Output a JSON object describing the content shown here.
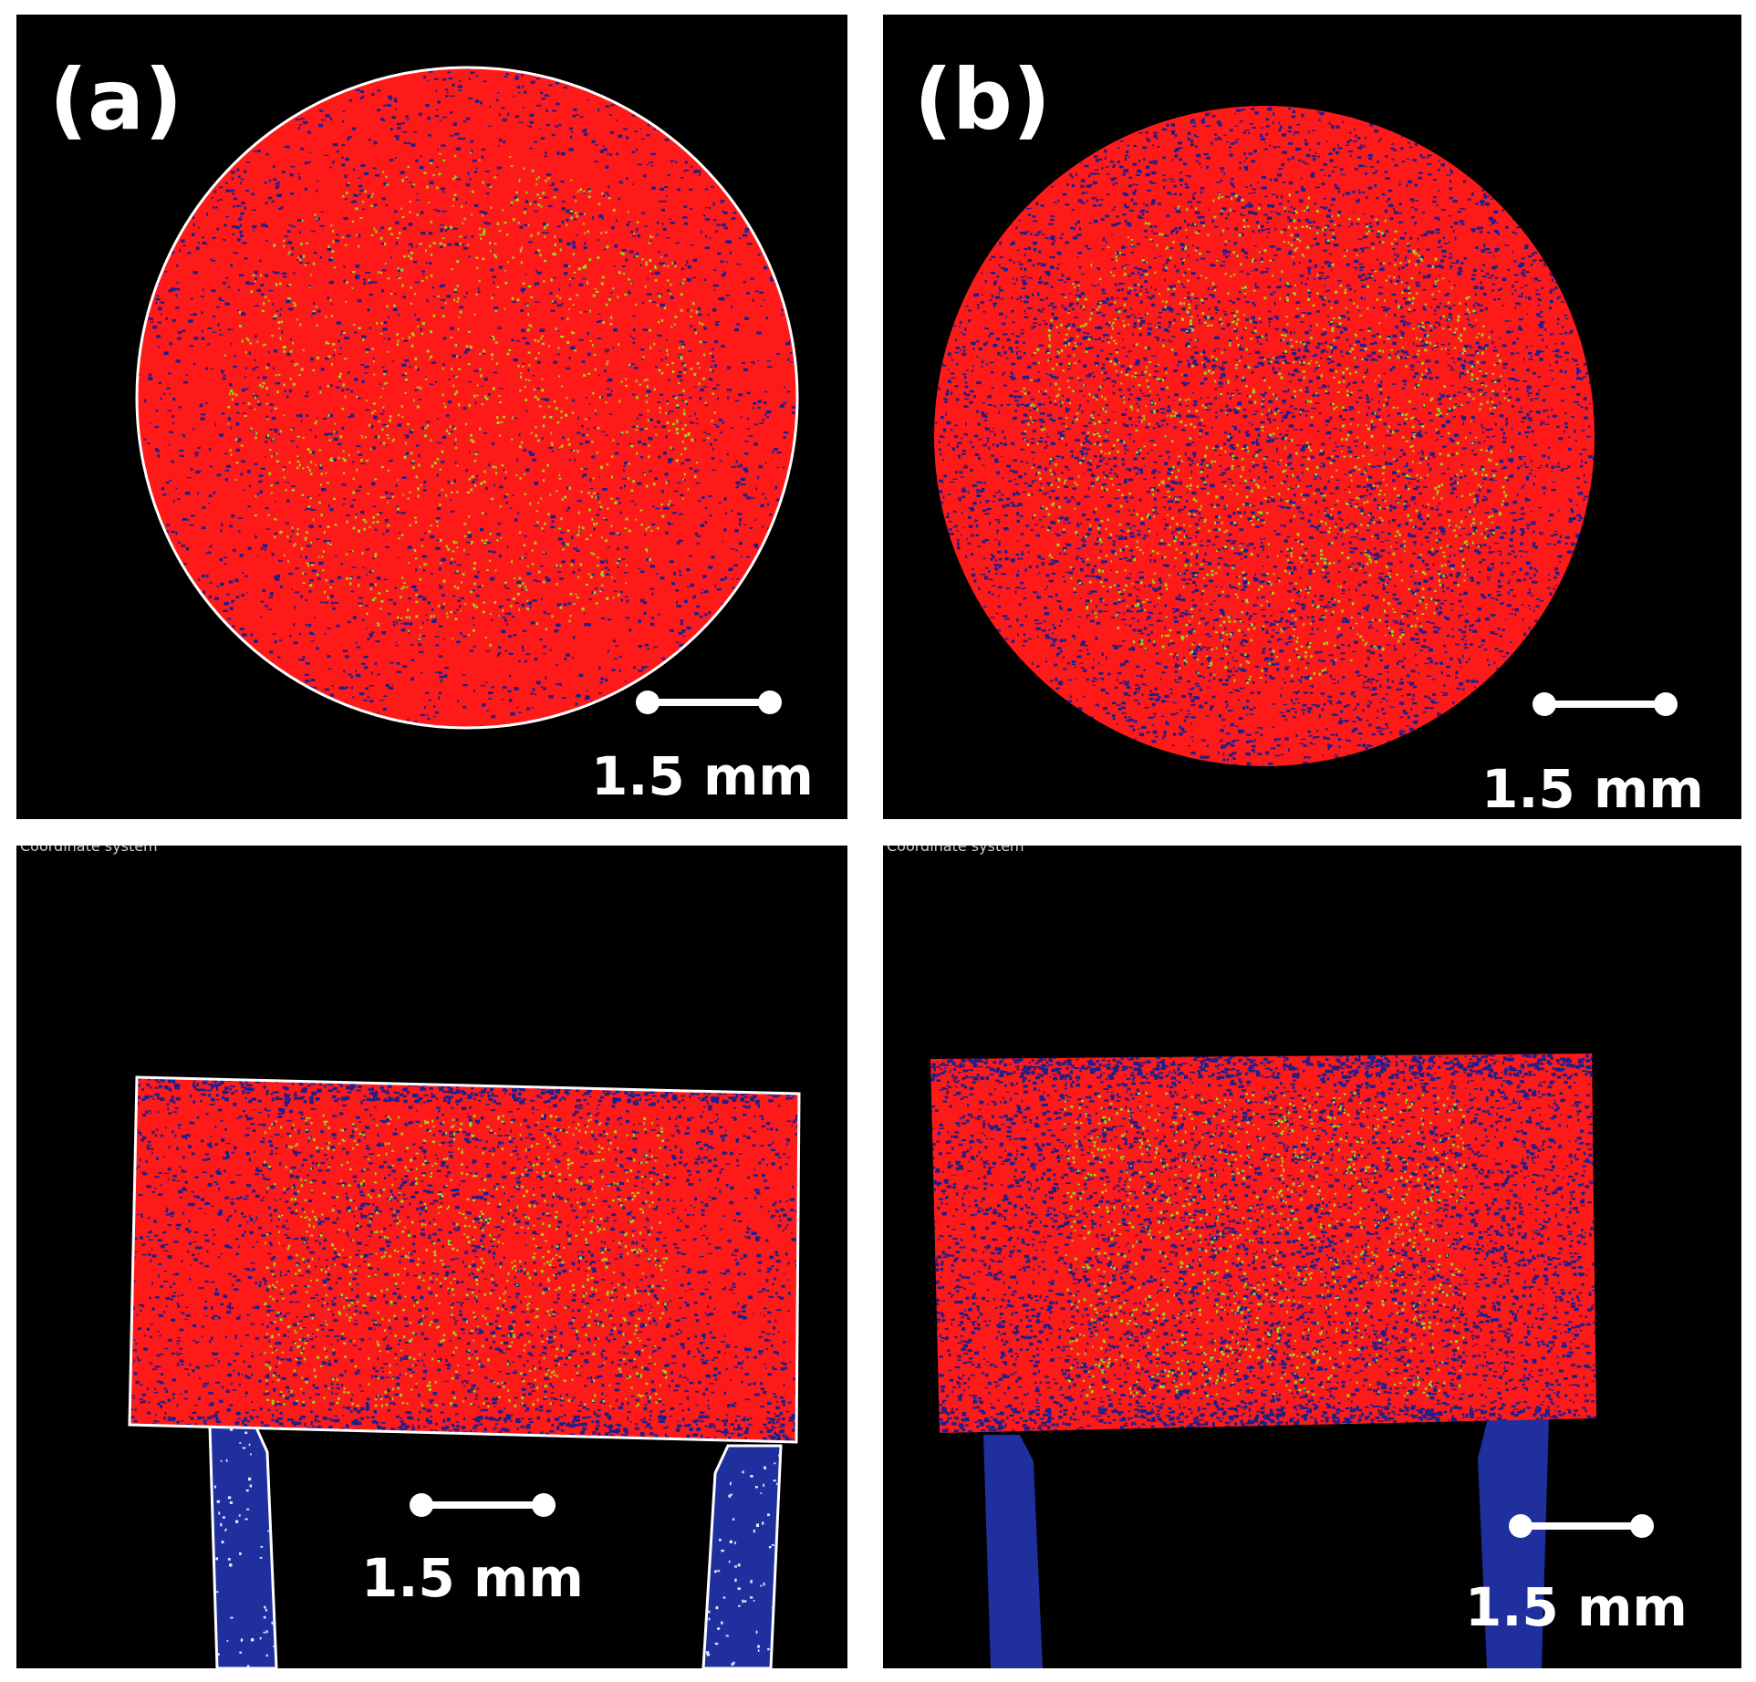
{
  "panels": {
    "top_left": {
      "label": "(a)",
      "view": "top",
      "outline": true,
      "scale_text": "1.5 mm"
    },
    "top_right": {
      "label": "(b)",
      "view": "top",
      "outline": false,
      "scale_text": "1.5 mm"
    },
    "bottom_left": {
      "coord_text": "Coordinate system",
      "view": "side",
      "outline": true,
      "scale_text": "1.5 mm"
    },
    "bottom_right": {
      "coord_text": "Coordinate system",
      "view": "side",
      "outline": false,
      "scale_text": "1.5 mm"
    }
  },
  "colors": {
    "background": "#000000",
    "sample": "#ff1a1a",
    "pores": "#1e1e8c",
    "inclusions": "#9cd61a",
    "holder": "#1f2f9e",
    "outline": "#ffffff",
    "scale_bar": "#ffffff"
  }
}
